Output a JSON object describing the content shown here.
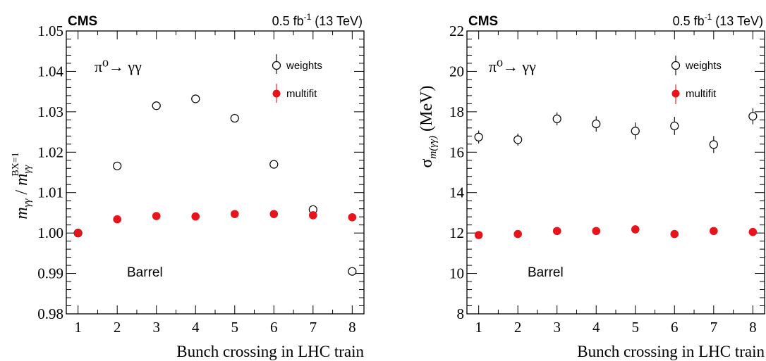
{
  "chart_data": [
    {
      "type": "scatter",
      "cms_label": "CMS",
      "lumi_prefix": "0.5 fb",
      "lumi_exp": "-1",
      "lumi_suffix": " (13 TeV)",
      "process": "π⁰→ γγ",
      "region": "Barrel",
      "xlabel": "Bunch crossing in LHC train",
      "ylabel": "mγγ / mγγ BX=1",
      "xlim": [
        0.7,
        8.3
      ],
      "ylim": [
        0.98,
        1.05
      ],
      "xticks": [
        1,
        2,
        3,
        4,
        5,
        6,
        7,
        8
      ],
      "yticks": [
        "0.98",
        "0.99",
        "1.00",
        "1.01",
        "1.02",
        "1.03",
        "1.04",
        "1.05"
      ],
      "legend": "top-right",
      "series": [
        {
          "name": "weights",
          "marker": "open-circle",
          "color": "#000000",
          "x": [
            1,
            2,
            3,
            4,
            5,
            6,
            7,
            8
          ],
          "y": [
            1.0,
            1.0166,
            1.0315,
            1.0332,
            1.0284,
            1.017,
            1.0058,
            0.9905
          ],
          "yerr": [
            0.0008,
            0.0007,
            0.0008,
            0.0008,
            0.0008,
            0.0007,
            0.0008,
            0.0008
          ]
        },
        {
          "name": "multifit",
          "marker": "filled-circle",
          "color": "#e8141b",
          "x": [
            1,
            2,
            3,
            4,
            5,
            6,
            7,
            8
          ],
          "y": [
            1.0,
            1.0034,
            1.0042,
            1.0041,
            1.0047,
            1.0047,
            1.0044,
            1.0039
          ],
          "yerr": [
            0.0004,
            0.0004,
            0.0004,
            0.0004,
            0.0004,
            0.0004,
            0.0004,
            0.0004
          ]
        }
      ]
    },
    {
      "type": "scatter",
      "cms_label": "CMS",
      "lumi_prefix": "0.5 fb",
      "lumi_exp": "-1",
      "lumi_suffix": " (13 TeV)",
      "process": "π⁰→ γγ",
      "region": "Barrel",
      "xlabel": "Bunch crossing in LHC train",
      "ylabel": "σ m(γγ) (MeV)",
      "xlim": [
        0.7,
        8.3
      ],
      "ylim": [
        8,
        22
      ],
      "xticks": [
        1,
        2,
        3,
        4,
        5,
        6,
        7,
        8
      ],
      "yticks": [
        "8",
        "10",
        "12",
        "14",
        "16",
        "18",
        "20",
        "22"
      ],
      "legend": "top-right",
      "series": [
        {
          "name": "weights",
          "marker": "open-circle",
          "color": "#000000",
          "x": [
            1,
            2,
            3,
            4,
            5,
            6,
            7,
            8
          ],
          "y": [
            16.75,
            16.62,
            17.65,
            17.4,
            17.05,
            17.3,
            16.38,
            17.78
          ],
          "yerr": [
            0.32,
            0.3,
            0.32,
            0.38,
            0.42,
            0.45,
            0.42,
            0.4
          ]
        },
        {
          "name": "multifit",
          "marker": "filled-circle",
          "color": "#e8141b",
          "x": [
            1,
            2,
            3,
            4,
            5,
            6,
            7,
            8
          ],
          "y": [
            11.9,
            11.95,
            12.1,
            12.1,
            12.18,
            11.95,
            12.1,
            12.05
          ],
          "yerr": [
            0.1,
            0.1,
            0.1,
            0.1,
            0.1,
            0.1,
            0.1,
            0.1
          ]
        }
      ]
    }
  ]
}
